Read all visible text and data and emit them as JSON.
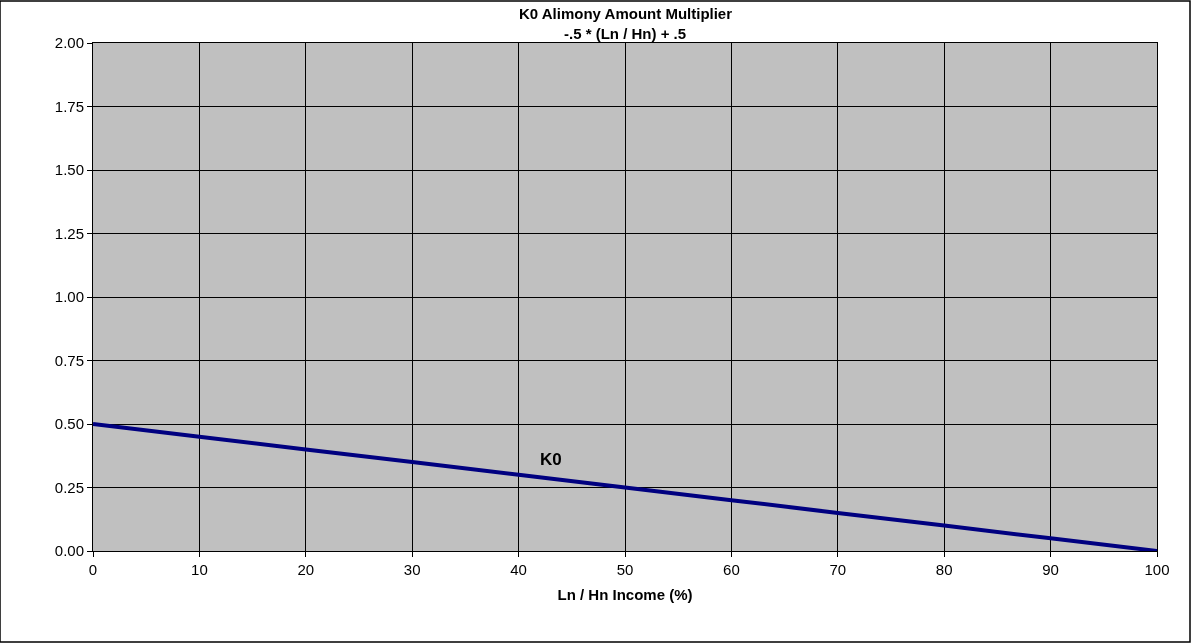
{
  "chart_data": {
    "type": "line",
    "title": "K0 Alimony Amount Multiplier",
    "subtitle": "-.5 * (Ln / Hn) + .5",
    "xlabel": "Ln / Hn Income (%)",
    "x": [
      0,
      10,
      20,
      30,
      40,
      50,
      60,
      70,
      80,
      90,
      100
    ],
    "series": [
      {
        "name": "K0",
        "color": "#000080",
        "values": [
          0.5,
          0.45,
          0.4,
          0.35,
          0.3,
          0.25,
          0.2,
          0.15,
          0.1,
          0.05,
          0.0
        ]
      }
    ],
    "xlim": [
      0,
      100
    ],
    "xticks": [
      0,
      10,
      20,
      30,
      40,
      50,
      60,
      70,
      80,
      90,
      100
    ],
    "ylim": [
      0,
      2
    ],
    "yticks": [
      {
        "value": 0,
        "label": "0.00"
      },
      {
        "value": 0.25,
        "label": "0.25"
      },
      {
        "value": 0.5,
        "label": "0.50"
      },
      {
        "value": 0.75,
        "label": "0.75"
      },
      {
        "value": 1,
        "label": "1.00"
      },
      {
        "value": 1.25,
        "label": "1.25"
      },
      {
        "value": 1.5,
        "label": "1.50"
      },
      {
        "value": 1.75,
        "label": "1.75"
      },
      {
        "value": 2,
        "label": "2.00"
      }
    ],
    "grid": true,
    "legend": false,
    "marker": "none",
    "line_style": "solid"
  }
}
